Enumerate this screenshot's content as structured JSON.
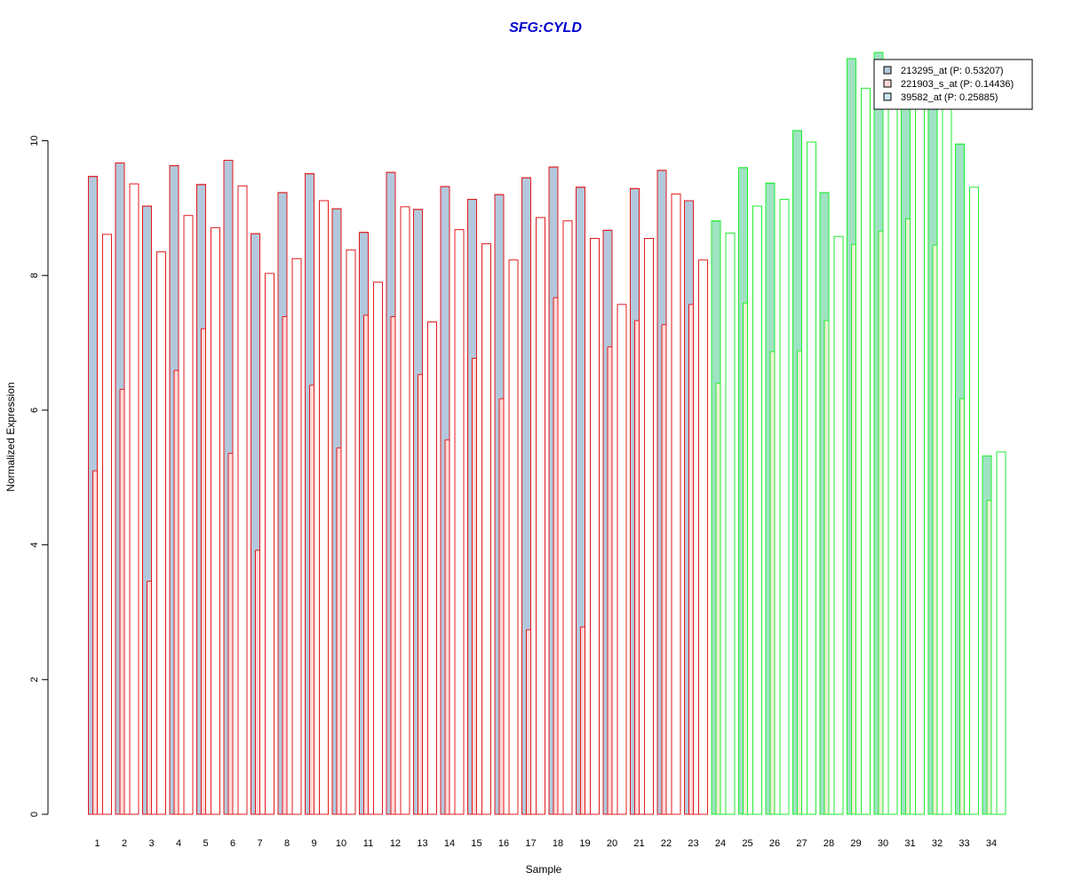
{
  "chart_data": {
    "type": "bar",
    "title": "SFG:CYLD",
    "xlabel": "Sample",
    "ylabel": "Normalized Expression",
    "ylim": [
      0,
      11.7
    ],
    "yticks": [
      0,
      2,
      4,
      6,
      8,
      10
    ],
    "categories": [
      "1",
      "2",
      "3",
      "4",
      "5",
      "6",
      "7",
      "8",
      "9",
      "10",
      "11",
      "12",
      "13",
      "14",
      "15",
      "16",
      "17",
      "18",
      "19",
      "20",
      "21",
      "22",
      "23",
      "24",
      "25",
      "26",
      "27",
      "28",
      "29",
      "30",
      "31",
      "32",
      "33",
      "34"
    ],
    "group_split_after": 23,
    "series": [
      {
        "name": "213295_at (P: 0.53207)",
        "values": [
          9.47,
          9.67,
          9.03,
          9.63,
          9.35,
          9.71,
          8.62,
          9.23,
          9.51,
          8.99,
          8.64,
          9.53,
          8.98,
          9.32,
          9.13,
          9.2,
          9.45,
          9.61,
          9.31,
          8.67,
          9.29,
          9.56,
          9.11,
          8.81,
          9.6,
          9.37,
          10.15,
          9.23,
          11.22,
          11.31,
          10.7,
          10.65,
          9.95,
          5.32
        ]
      },
      {
        "name": "221903_s_at (P: 0.14436)",
        "values": [
          5.1,
          6.31,
          3.46,
          6.59,
          7.21,
          5.36,
          3.92,
          7.39,
          6.37,
          5.44,
          7.41,
          7.39,
          6.53,
          5.56,
          6.77,
          6.17,
          2.74,
          7.67,
          2.78,
          6.94,
          7.33,
          7.27,
          7.57,
          6.4,
          7.59,
          6.87,
          6.88,
          7.33,
          8.46,
          8.66,
          8.84,
          8.45,
          6.17,
          4.66
        ]
      },
      {
        "name": "39582_at (P: 0.25885)",
        "values": [
          8.61,
          9.36,
          8.35,
          8.89,
          8.71,
          9.33,
          8.03,
          8.25,
          9.11,
          8.38,
          7.9,
          9.02,
          7.31,
          8.68,
          8.47,
          8.23,
          8.86,
          8.81,
          8.55,
          7.57,
          8.55,
          9.21,
          8.23,
          8.63,
          9.03,
          9.13,
          9.98,
          8.58,
          10.78,
          10.8,
          10.78,
          10.8,
          9.31,
          5.38
        ]
      }
    ],
    "colors": {
      "group1_border": "#e31a1c",
      "group1_fill_s1": "#b3c8dc",
      "group1_fill_s2": "#ffd9d9",
      "group2_border": "#22ee33",
      "group2_fill_s1": "#9fe3c3",
      "group2_fill_s2": "#eef0d2",
      "title": "#0000cc"
    },
    "legend": [
      {
        "label": "213295_at (P: 0.53207)",
        "fill": "#b3c8dc"
      },
      {
        "label": "221903_s_at (P: 0.14436)",
        "fill": "#ffd9d9"
      },
      {
        "label": "39582_at (P: 0.25885)",
        "fill": "#c9e6ee"
      }
    ],
    "legend_position": "top-right",
    "grid": false
  }
}
